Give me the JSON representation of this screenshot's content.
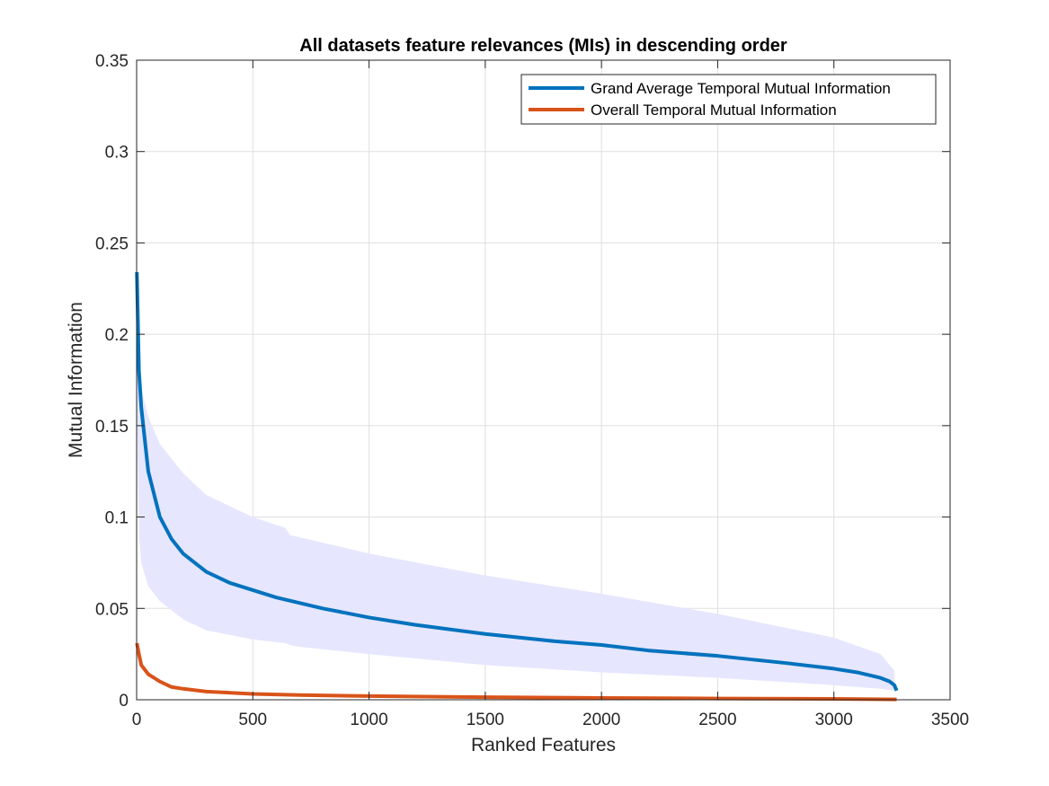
{
  "chart_data": {
    "type": "line",
    "title": "All datasets feature relevances (MIs) in descending order",
    "xlabel": "Ranked Features",
    "ylabel": "Mutual Information",
    "xlim": [
      0,
      3500
    ],
    "ylim": [
      0,
      0.35
    ],
    "xticks": [
      0,
      500,
      1000,
      1500,
      2000,
      2500,
      3000,
      3500
    ],
    "yticks": [
      0,
      0.05,
      0.1,
      0.15,
      0.2,
      0.25,
      0.3,
      0.35
    ],
    "xtick_labels": [
      "0",
      "500",
      "1000",
      "1500",
      "2000",
      "2500",
      "3000",
      "3500"
    ],
    "ytick_labels": [
      "0",
      "0.05",
      "0.1",
      "0.15",
      "0.2",
      "0.25",
      "0.3",
      "0.35"
    ],
    "grid": true,
    "legend_position": "top-right",
    "series": [
      {
        "name": "Grand Average Temporal Mutual Information",
        "color": "#0072BD",
        "x": [
          1,
          10,
          20,
          50,
          100,
          150,
          200,
          300,
          400,
          500,
          600,
          700,
          800,
          1000,
          1200,
          1500,
          1800,
          2000,
          2200,
          2500,
          2800,
          3000,
          3100,
          3200,
          3240,
          3260,
          3270
        ],
        "y": [
          0.234,
          0.18,
          0.16,
          0.125,
          0.1,
          0.088,
          0.08,
          0.07,
          0.064,
          0.06,
          0.056,
          0.053,
          0.05,
          0.045,
          0.041,
          0.036,
          0.032,
          0.03,
          0.027,
          0.024,
          0.02,
          0.017,
          0.015,
          0.012,
          0.01,
          0.008,
          0.005
        ]
      },
      {
        "name": "Overall Temporal Mutual Information",
        "color": "#D95319",
        "x": [
          1,
          10,
          20,
          50,
          100,
          150,
          200,
          300,
          500,
          700,
          1000,
          1500,
          2000,
          2500,
          3000,
          3270
        ],
        "y": [
          0.031,
          0.025,
          0.019,
          0.014,
          0.01,
          0.007,
          0.006,
          0.0045,
          0.0032,
          0.0026,
          0.002,
          0.0014,
          0.001,
          0.0007,
          0.0005,
          0.0002
        ]
      }
    ],
    "band": {
      "color": "#E6E6FF",
      "x": [
        1,
        10,
        20,
        50,
        100,
        200,
        300,
        500,
        640,
        660,
        700,
        1000,
        1500,
        2000,
        2500,
        3000,
        3200,
        3260
      ],
      "upper": [
        0.19,
        0.178,
        0.17,
        0.155,
        0.14,
        0.124,
        0.112,
        0.1,
        0.094,
        0.09,
        0.089,
        0.08,
        0.068,
        0.058,
        0.047,
        0.034,
        0.025,
        0.016
      ],
      "lower": [
        0.16,
        0.09,
        0.075,
        0.062,
        0.054,
        0.044,
        0.038,
        0.033,
        0.031,
        0.03,
        0.029,
        0.025,
        0.019,
        0.015,
        0.012,
        0.008,
        0.006,
        0.005
      ]
    }
  }
}
